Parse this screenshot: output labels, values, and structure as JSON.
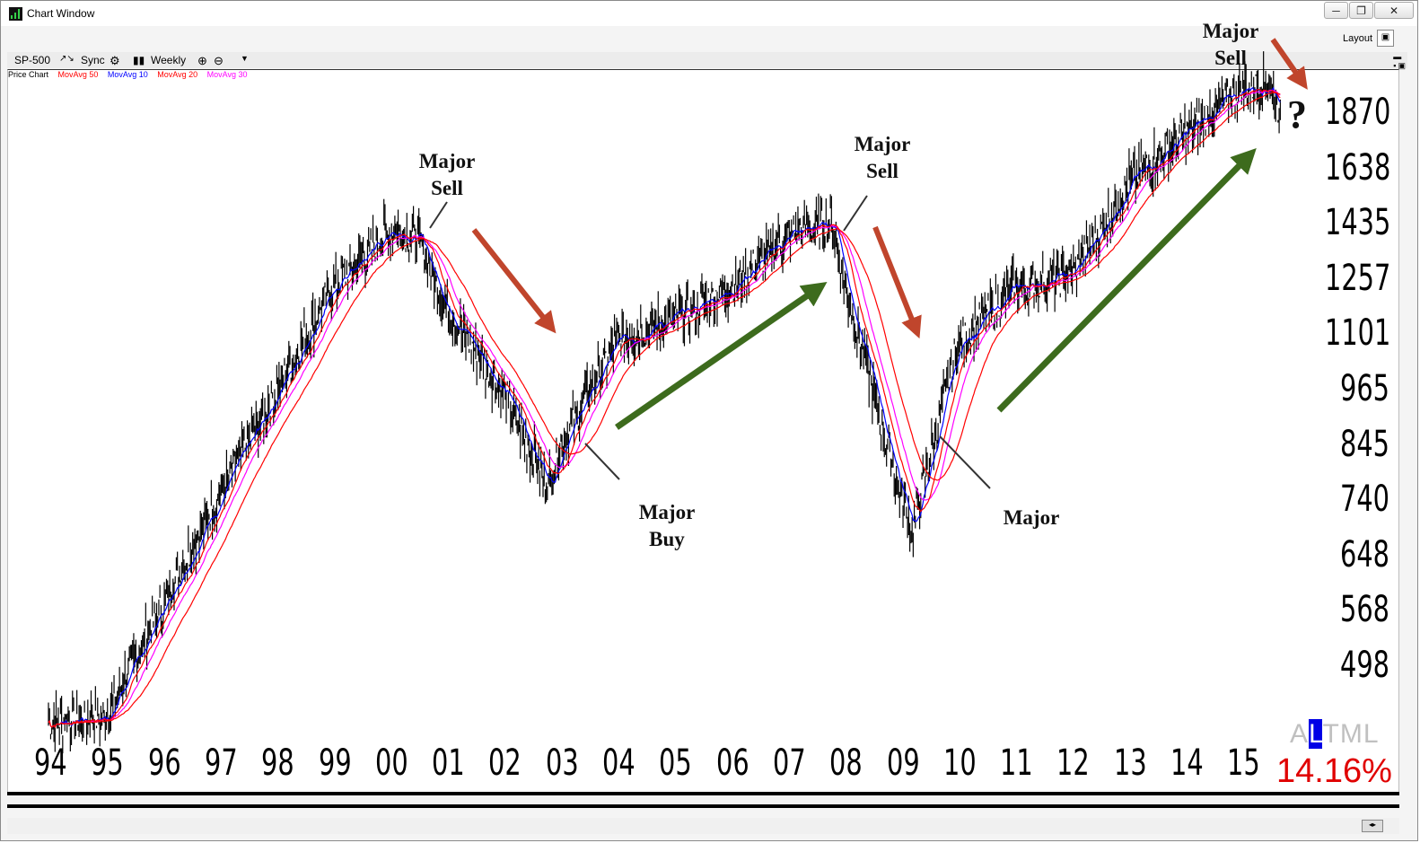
{
  "window": {
    "title": "Chart Window",
    "controls": [
      "─",
      "❐",
      "✕"
    ],
    "layout_label": "Layout"
  },
  "toolbar": {
    "symbol": "SP-500",
    "sync_label": "Sync",
    "period": "Weekly"
  },
  "legend": {
    "price_chart": "Price Chart",
    "ma50": "MovAvg 50",
    "ma10": "MovAvg 10",
    "ma20": "MovAvg 20",
    "ma30": "MovAvg 30"
  },
  "colors": {
    "price": "#000000",
    "ma50": "#ff0000",
    "ma10": "#0000ff",
    "ma20": "#ff0000",
    "ma30": "#ff00ff",
    "sell_arrow": "#c0452c",
    "buy_arrow": "#3d6b1d",
    "pct": "#e00000",
    "altml_highlight": "#0000e6"
  },
  "annotations": {
    "sell1": "Major\nSell",
    "buy1": "Major\nBuy",
    "sell2": "Major\nSell",
    "buy2": "Major",
    "sell3": "Major\nSell",
    "question": "?"
  },
  "y_axis_labels": [
    "1870",
    "1638",
    "1435",
    "1257",
    "1101",
    "965",
    "845",
    "740",
    "648",
    "568",
    "498"
  ],
  "x_axis_labels": [
    "94",
    "95",
    "96",
    "97",
    "98",
    "99",
    "00",
    "01",
    "02",
    "03",
    "04",
    "05",
    "06",
    "07",
    "08",
    "09",
    "10",
    "11",
    "12",
    "13",
    "14",
    "15"
  ],
  "altml": {
    "a": "A",
    "l": "L",
    "t": "T",
    "m": "M",
    "l2": "L"
  },
  "percent": "14.16%",
  "chart_data": {
    "type": "line",
    "scale": "log",
    "x": [
      "1994",
      "1995",
      "1996",
      "1997",
      "1998",
      "1999",
      "2000",
      "2000.5",
      "2001",
      "2002",
      "2002.8",
      "2003",
      "2004",
      "2005",
      "2006",
      "2007",
      "2007.8",
      "2008",
      "2009",
      "2009.2",
      "2010",
      "2011",
      "2012",
      "2013",
      "2014",
      "2015",
      "2015.5",
      "2015.7"
    ],
    "series": [
      {
        "name": "SP-500",
        "values": [
          455,
          460,
          600,
          780,
          1000,
          1280,
          1470,
          1440,
          1220,
          1000,
          800,
          880,
          1130,
          1190,
          1280,
          1450,
          1500,
          1300,
          780,
          720,
          1120,
          1280,
          1320,
          1640,
          1850,
          2060,
          2070,
          1920
        ]
      }
    ],
    "ylim": [
      440,
      2140
    ]
  }
}
